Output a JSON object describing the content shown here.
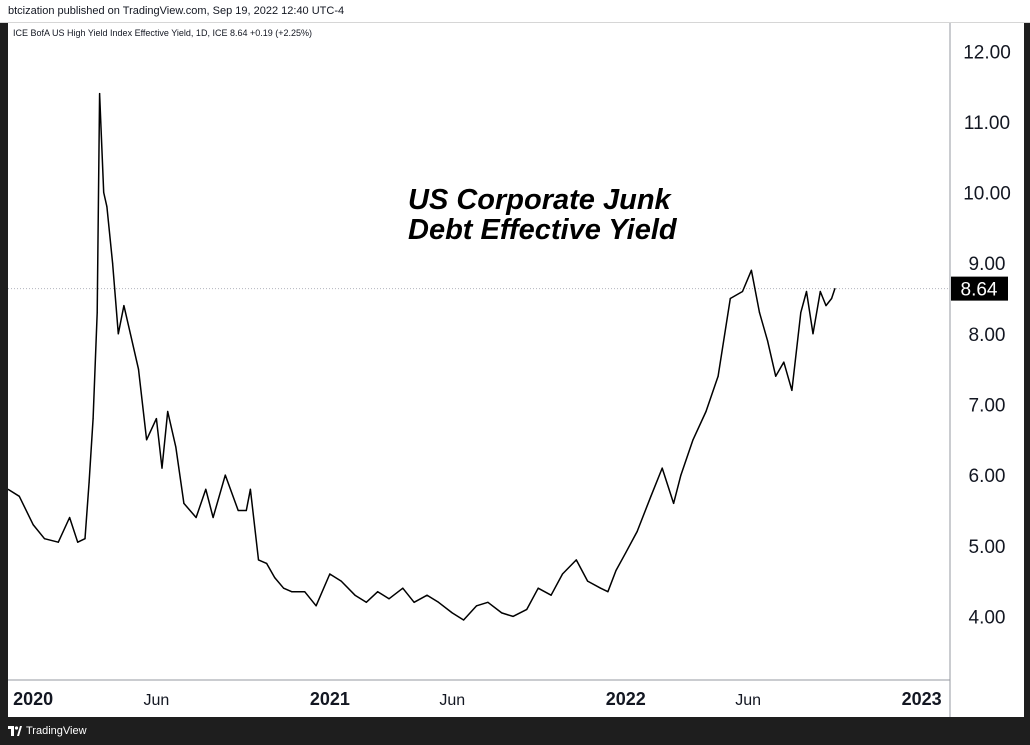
{
  "header": {
    "published": "btcization published on TradingView.com, Sep 19, 2022 12:40 UTC-4"
  },
  "footer": {
    "brand": "TradingView"
  },
  "colors": {
    "line": "#000000",
    "price_label_bg": "#000000",
    "price_label_text": "#ffffff",
    "border": "#9598a1",
    "grid_hline": "#b2b5be"
  },
  "chart_data": {
    "type": "line",
    "legend_text": "ICE BofA US High Yield Index Effective Yield, 1D, ICE  8.64  +0.19 (+2.25%)",
    "annotation": [
      "US Corporate Junk",
      "Debt Effective Yield"
    ],
    "last_price_label": "8.64",
    "last_value": 8.64,
    "ylim": [
      3.1,
      12.4
    ],
    "y_ticks": [
      {
        "label": "12.00",
        "value": 12
      },
      {
        "label": "11.00",
        "value": 11
      },
      {
        "label": "10.00",
        "value": 10
      },
      {
        "label": "9.00",
        "value": 9
      },
      {
        "label": "8.00",
        "value": 8
      },
      {
        "label": "7.00",
        "value": 7
      },
      {
        "label": "6.00",
        "value": 6
      },
      {
        "label": "5.00",
        "value": 5
      },
      {
        "label": "4.00",
        "value": 4
      }
    ],
    "xlim": [
      "2019-12-01",
      "2023-02-05"
    ],
    "x_ticks": [
      {
        "label": "2020",
        "date": "2020-01-01",
        "bold": true
      },
      {
        "label": "Jun",
        "date": "2020-06-01",
        "bold": false
      },
      {
        "label": "2021",
        "date": "2021-01-01",
        "bold": true
      },
      {
        "label": "Jun",
        "date": "2021-06-01",
        "bold": false
      },
      {
        "label": "2022",
        "date": "2022-01-01",
        "bold": true
      },
      {
        "label": "Jun",
        "date": "2022-06-01",
        "bold": false
      },
      {
        "label": "2023",
        "date": "2023-01-01",
        "bold": true
      }
    ],
    "series": [
      {
        "x": [
          "2019-12-01",
          "2019-12-15",
          "2020-01-01",
          "2020-01-15",
          "2020-02-01",
          "2020-02-15",
          "2020-02-25",
          "2020-03-05",
          "2020-03-10",
          "2020-03-15",
          "2020-03-20",
          "2020-03-23",
          "2020-03-28",
          "2020-04-01",
          "2020-04-08",
          "2020-04-15",
          "2020-04-22",
          "2020-04-30",
          "2020-05-10",
          "2020-05-20",
          "2020-06-01",
          "2020-06-08",
          "2020-06-15",
          "2020-06-25",
          "2020-07-05",
          "2020-07-20",
          "2020-08-01",
          "2020-08-10",
          "2020-08-25",
          "2020-09-10",
          "2020-09-20",
          "2020-09-25",
          "2020-10-05",
          "2020-10-15",
          "2020-10-25",
          "2020-11-05",
          "2020-11-15",
          "2020-12-01",
          "2020-12-15",
          "2021-01-01",
          "2021-01-15",
          "2021-02-01",
          "2021-02-15",
          "2021-03-01",
          "2021-03-15",
          "2021-04-01",
          "2021-04-15",
          "2021-05-01",
          "2021-05-15",
          "2021-06-01",
          "2021-06-15",
          "2021-07-01",
          "2021-07-15",
          "2021-08-01",
          "2021-08-15",
          "2021-09-01",
          "2021-09-15",
          "2021-10-01",
          "2021-10-15",
          "2021-11-01",
          "2021-11-15",
          "2021-12-01",
          "2021-12-10",
          "2021-12-20",
          "2022-01-01",
          "2022-01-15",
          "2022-02-01",
          "2022-02-15",
          "2022-03-01",
          "2022-03-10",
          "2022-03-25",
          "2022-04-10",
          "2022-04-25",
          "2022-05-10",
          "2022-05-25",
          "2022-06-05",
          "2022-06-15",
          "2022-06-25",
          "2022-07-05",
          "2022-07-15",
          "2022-07-25",
          "2022-08-05",
          "2022-08-12",
          "2022-08-20",
          "2022-08-29",
          "2022-09-05",
          "2022-09-12",
          "2022-09-16"
        ],
        "values": [
          5.8,
          5.7,
          5.3,
          5.1,
          5.05,
          5.4,
          5.05,
          5.1,
          5.9,
          6.8,
          8.3,
          11.4,
          10.0,
          9.8,
          9.0,
          8.0,
          8.4,
          8.0,
          7.5,
          6.5,
          6.8,
          6.1,
          6.9,
          6.4,
          5.6,
          5.4,
          5.8,
          5.4,
          6.0,
          5.5,
          5.5,
          5.8,
          4.8,
          4.75,
          4.55,
          4.4,
          4.35,
          4.35,
          4.15,
          4.6,
          4.5,
          4.3,
          4.2,
          4.35,
          4.25,
          4.4,
          4.2,
          4.3,
          4.2,
          4.05,
          3.95,
          4.15,
          4.2,
          4.05,
          4.0,
          4.1,
          4.4,
          4.3,
          4.6,
          4.8,
          4.5,
          4.4,
          4.35,
          4.65,
          4.9,
          5.2,
          5.7,
          6.1,
          5.6,
          6.0,
          6.5,
          6.9,
          7.4,
          8.5,
          8.6,
          8.9,
          8.3,
          7.9,
          7.4,
          7.6,
          7.2,
          8.3,
          8.6,
          8.0,
          8.6,
          8.4,
          8.5,
          8.64
        ]
      }
    ]
  }
}
